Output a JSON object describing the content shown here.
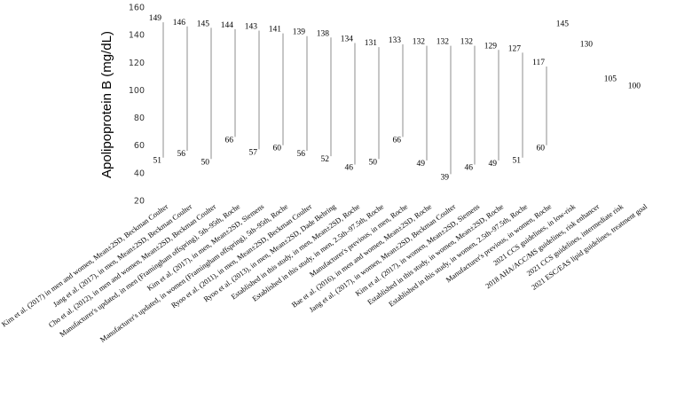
{
  "chart_data": {
    "type": "range",
    "ylabel": "Apolipoprotein B (mg/dL)",
    "ylim": [
      20,
      160
    ],
    "yticks": [
      20,
      40,
      60,
      80,
      100,
      120,
      140,
      160
    ],
    "grid": false,
    "categories": [
      "Kim et al. (2017) in men and women, Mean±2SD, Beckman Coulter",
      "Jang et al. (2017), in men, Mean±2SD, Beckman Coulter",
      "Cho et al. (2012), in men and women, Mean±2SD, Beckman Coulter",
      "Manufacturer's updated, in men (Framingham offspring), 5th–95th, Roche",
      "Kim et al. (2017), in men, Mean±2SD, Siemens",
      "Manufacturer's updated, in women (Framingham offspring), 5th–95th, Roche",
      "Ryoo et al. (2011), in men, Mean±2SD, Beckman Coulter",
      "Ryoo et al. (2013), in men, Mean±2SD, Dade Behring",
      "Established in this study, in men, Mean±2SD, Roche",
      "Established in this study, in men, 2.5th–97.5th, Roche",
      "Manufacturer's previous, in men, Roche",
      "Bae et al. (2016), in men and women, Mean±2SD, Roche",
      "Jang et al. (2017), in women, Mean±2SD, Beckman Coulter",
      "Kim et al. (2017), in women, Mean±2SD, Siemens",
      "Established in this study, in women, Mean±2SD, Roche",
      "Established in this study, in women, 2.5th–97.5th, Roche",
      "Manufacturer's previous, in women, Roche",
      "2021 CCS guidelines, in low-risk",
      "2018 AHA/ACC/MS guidelines, risk enhancer",
      "2021 CCS guidelines, intermediate risk",
      "2021 ESC/EAS lipid guidelines, treatment goal"
    ],
    "upper": [
      149,
      146,
      145,
      144,
      143,
      141,
      139,
      138,
      134,
      131,
      133,
      132,
      132,
      132,
      129,
      127,
      117,
      145,
      130,
      105,
      100
    ],
    "lower": [
      51,
      56,
      50,
      66,
      57,
      60,
      56,
      52,
      46,
      50,
      66,
      49,
      39,
      46,
      49,
      51,
      60,
      null,
      null,
      null,
      null
    ],
    "label_colors": [
      "#000000",
      "#000000",
      "#000000",
      "#000000",
      "#000000",
      "#000000",
      "#000000",
      "#000000",
      "#e8211d",
      "#e8211d",
      "#000000",
      "#000000",
      "#000000",
      "#000000",
      "#000000",
      "#000000",
      "#000000",
      "#1a1adb",
      "#1a1adb",
      "#1a1adb",
      "#1a1adb"
    ],
    "line_color": "#8c8c8c"
  }
}
